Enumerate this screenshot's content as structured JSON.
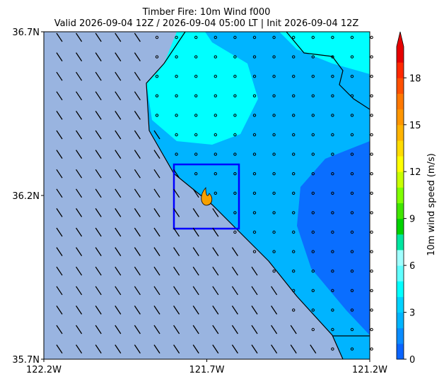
{
  "chart_data": {
    "type": "map",
    "title": "Timber Fire: 10m Wind f000",
    "subtitle": "Valid 2026-09-04 12Z / 2026-09-04 05:00 LT | Init 2026-09-04 12Z",
    "xlim": [
      -122.2,
      -121.2
    ],
    "ylim": [
      35.7,
      36.7
    ],
    "xticks": [
      {
        "value": -122.2,
        "label": "122.2W"
      },
      {
        "value": -121.7,
        "label": "121.7W"
      },
      {
        "value": -121.2,
        "label": "121.2W"
      }
    ],
    "yticks": [
      {
        "value": 35.7,
        "label": "35.7N"
      },
      {
        "value": 36.2,
        "label": "36.2N"
      },
      {
        "value": 36.7,
        "label": "36.7N"
      }
    ],
    "colorbar": {
      "label": "10m wind speed (m/s)",
      "lim": [
        0,
        20
      ],
      "ticks": [
        0,
        3,
        6,
        9,
        12,
        15,
        18
      ],
      "colors": [
        "#0a64ff",
        "#0a8cff",
        "#00b4ff",
        "#00d2ff",
        "#00ffff",
        "#60ffff",
        "#a0ffff",
        "#00e6a0",
        "#00d200",
        "#40e600",
        "#80ff00",
        "#c8ff00",
        "#ffff00",
        "#ffdc00",
        "#ffb400",
        "#ff9600",
        "#ff7800",
        "#ff5000",
        "#ff2800",
        "#e60000"
      ]
    }
  }
}
